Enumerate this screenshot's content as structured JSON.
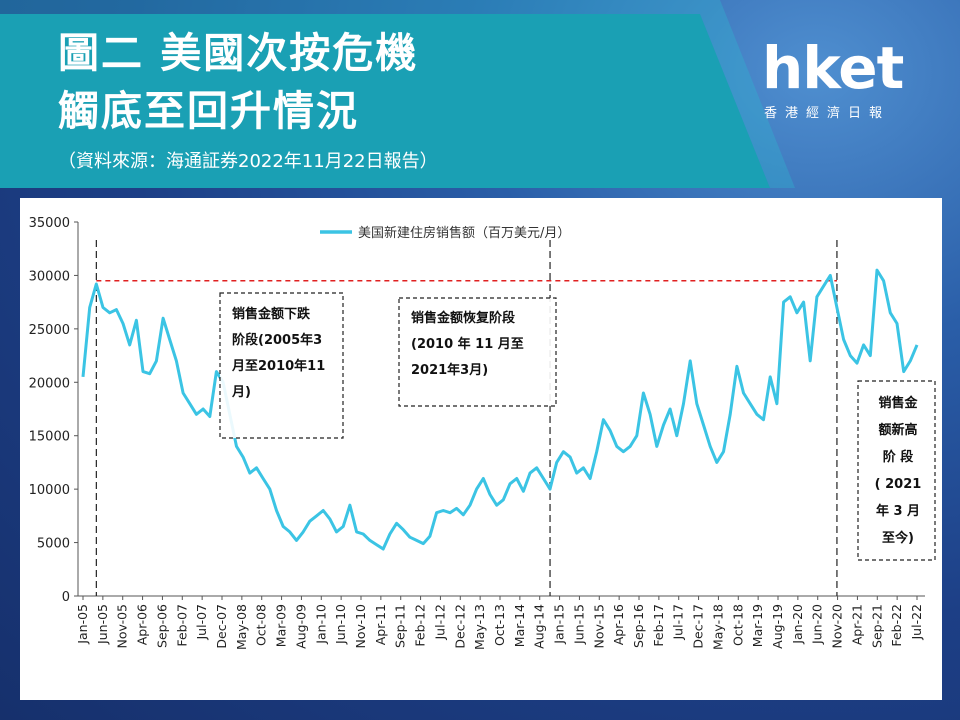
{
  "header": {
    "title_line1": "圖二 美國次按危機",
    "title_line2": "觸底至回升情況",
    "source": "（資料來源：海通証券2022年11月22日報告）"
  },
  "logo": {
    "main": "hket",
    "sub": "香港經濟日報"
  },
  "colors": {
    "banner": "#1aa0b4",
    "series": "#3bc4e4",
    "peak_line": "#e02020",
    "page_bg": "#1d3f86"
  },
  "chart_data": {
    "type": "line",
    "title": "",
    "legend": "美国新建住房销售额（百万美元/月）",
    "legend_position": "top-center",
    "xlabel": "",
    "ylabel": "",
    "ylim": [
      0,
      35000
    ],
    "yticks": [
      "35000",
      "30000",
      "25000",
      "20000",
      "15000",
      "10000",
      "5000",
      "0"
    ],
    "xticks": [
      "Jan-05",
      "Jun-05",
      "Nov-05",
      "Apr-06",
      "Sep-06",
      "Feb-07",
      "Jul-07",
      "Dec-07",
      "May-08",
      "Oct-08",
      "Mar-09",
      "Aug-09",
      "Jan-10",
      "Jun-10",
      "Nov-10",
      "Apr-11",
      "Sep-11",
      "Feb-12",
      "Jul-12",
      "Dec-12",
      "May-13",
      "Oct-13",
      "Mar-14",
      "Aug-14",
      "Jan-15",
      "Jun-15",
      "Nov-15",
      "Apr-16",
      "Sep-16",
      "Feb-17",
      "Jul-17",
      "Dec-17",
      "May-18",
      "Oct-18",
      "Mar-19",
      "Aug-19",
      "Jan-20",
      "Jun-20",
      "Nov-20",
      "Apr-21",
      "Sep-21",
      "Feb-22",
      "Jul-22"
    ],
    "peak_reference": 29500,
    "phases": [
      {
        "label_lines": [
          "销售金额下跌",
          "阶段(2005年3",
          "月至2010年11",
          "月)"
        ]
      },
      {
        "label_lines": [
          "销售金额恢复阶段",
          "(2010 年 11 月至",
          "2021年3月)"
        ]
      },
      {
        "label_lines": [
          "销售金",
          "额新高",
          "阶 段",
          "( 2021",
          "年 3 月",
          "至今)"
        ]
      }
    ],
    "series": [
      {
        "name": "美国新建住房销售额（百万美元/月）",
        "values": [
          20500,
          27000,
          29200,
          27000,
          26500,
          26800,
          25500,
          23500,
          25800,
          21000,
          20800,
          22000,
          26000,
          24000,
          22000,
          19000,
          18000,
          17000,
          17500,
          16800,
          21000,
          20000,
          17000,
          14000,
          13000,
          11500,
          12000,
          11000,
          10000,
          8000,
          6500,
          6000,
          5200,
          6000,
          7000,
          7500,
          8000,
          7200,
          6000,
          6500,
          8500,
          6000,
          5800,
          5200,
          4800,
          4400,
          5800,
          6800,
          6200,
          5500,
          5200,
          4900,
          5600,
          7800,
          8000,
          7800,
          8200,
          7600,
          8500,
          10000,
          11000,
          9500,
          8500,
          9000,
          10500,
          11000,
          9800,
          11500,
          12000,
          11000,
          10000,
          12500,
          13500,
          13000,
          11500,
          12000,
          11000,
          13500,
          16500,
          15500,
          14000,
          13500,
          14000,
          15000,
          19000,
          17000,
          14000,
          16000,
          17500,
          15000,
          18000,
          22000,
          18000,
          16000,
          14000,
          12500,
          13500,
          17000,
          21500,
          19000,
          18000,
          17000,
          16500,
          20500,
          18000,
          27500,
          28000,
          26500,
          27500,
          22000,
          28000,
          29000,
          30000,
          27000,
          24000,
          22500,
          21800,
          23500,
          22500,
          30500,
          29500,
          26500,
          25500,
          21000,
          22000,
          23500
        ]
      }
    ]
  }
}
